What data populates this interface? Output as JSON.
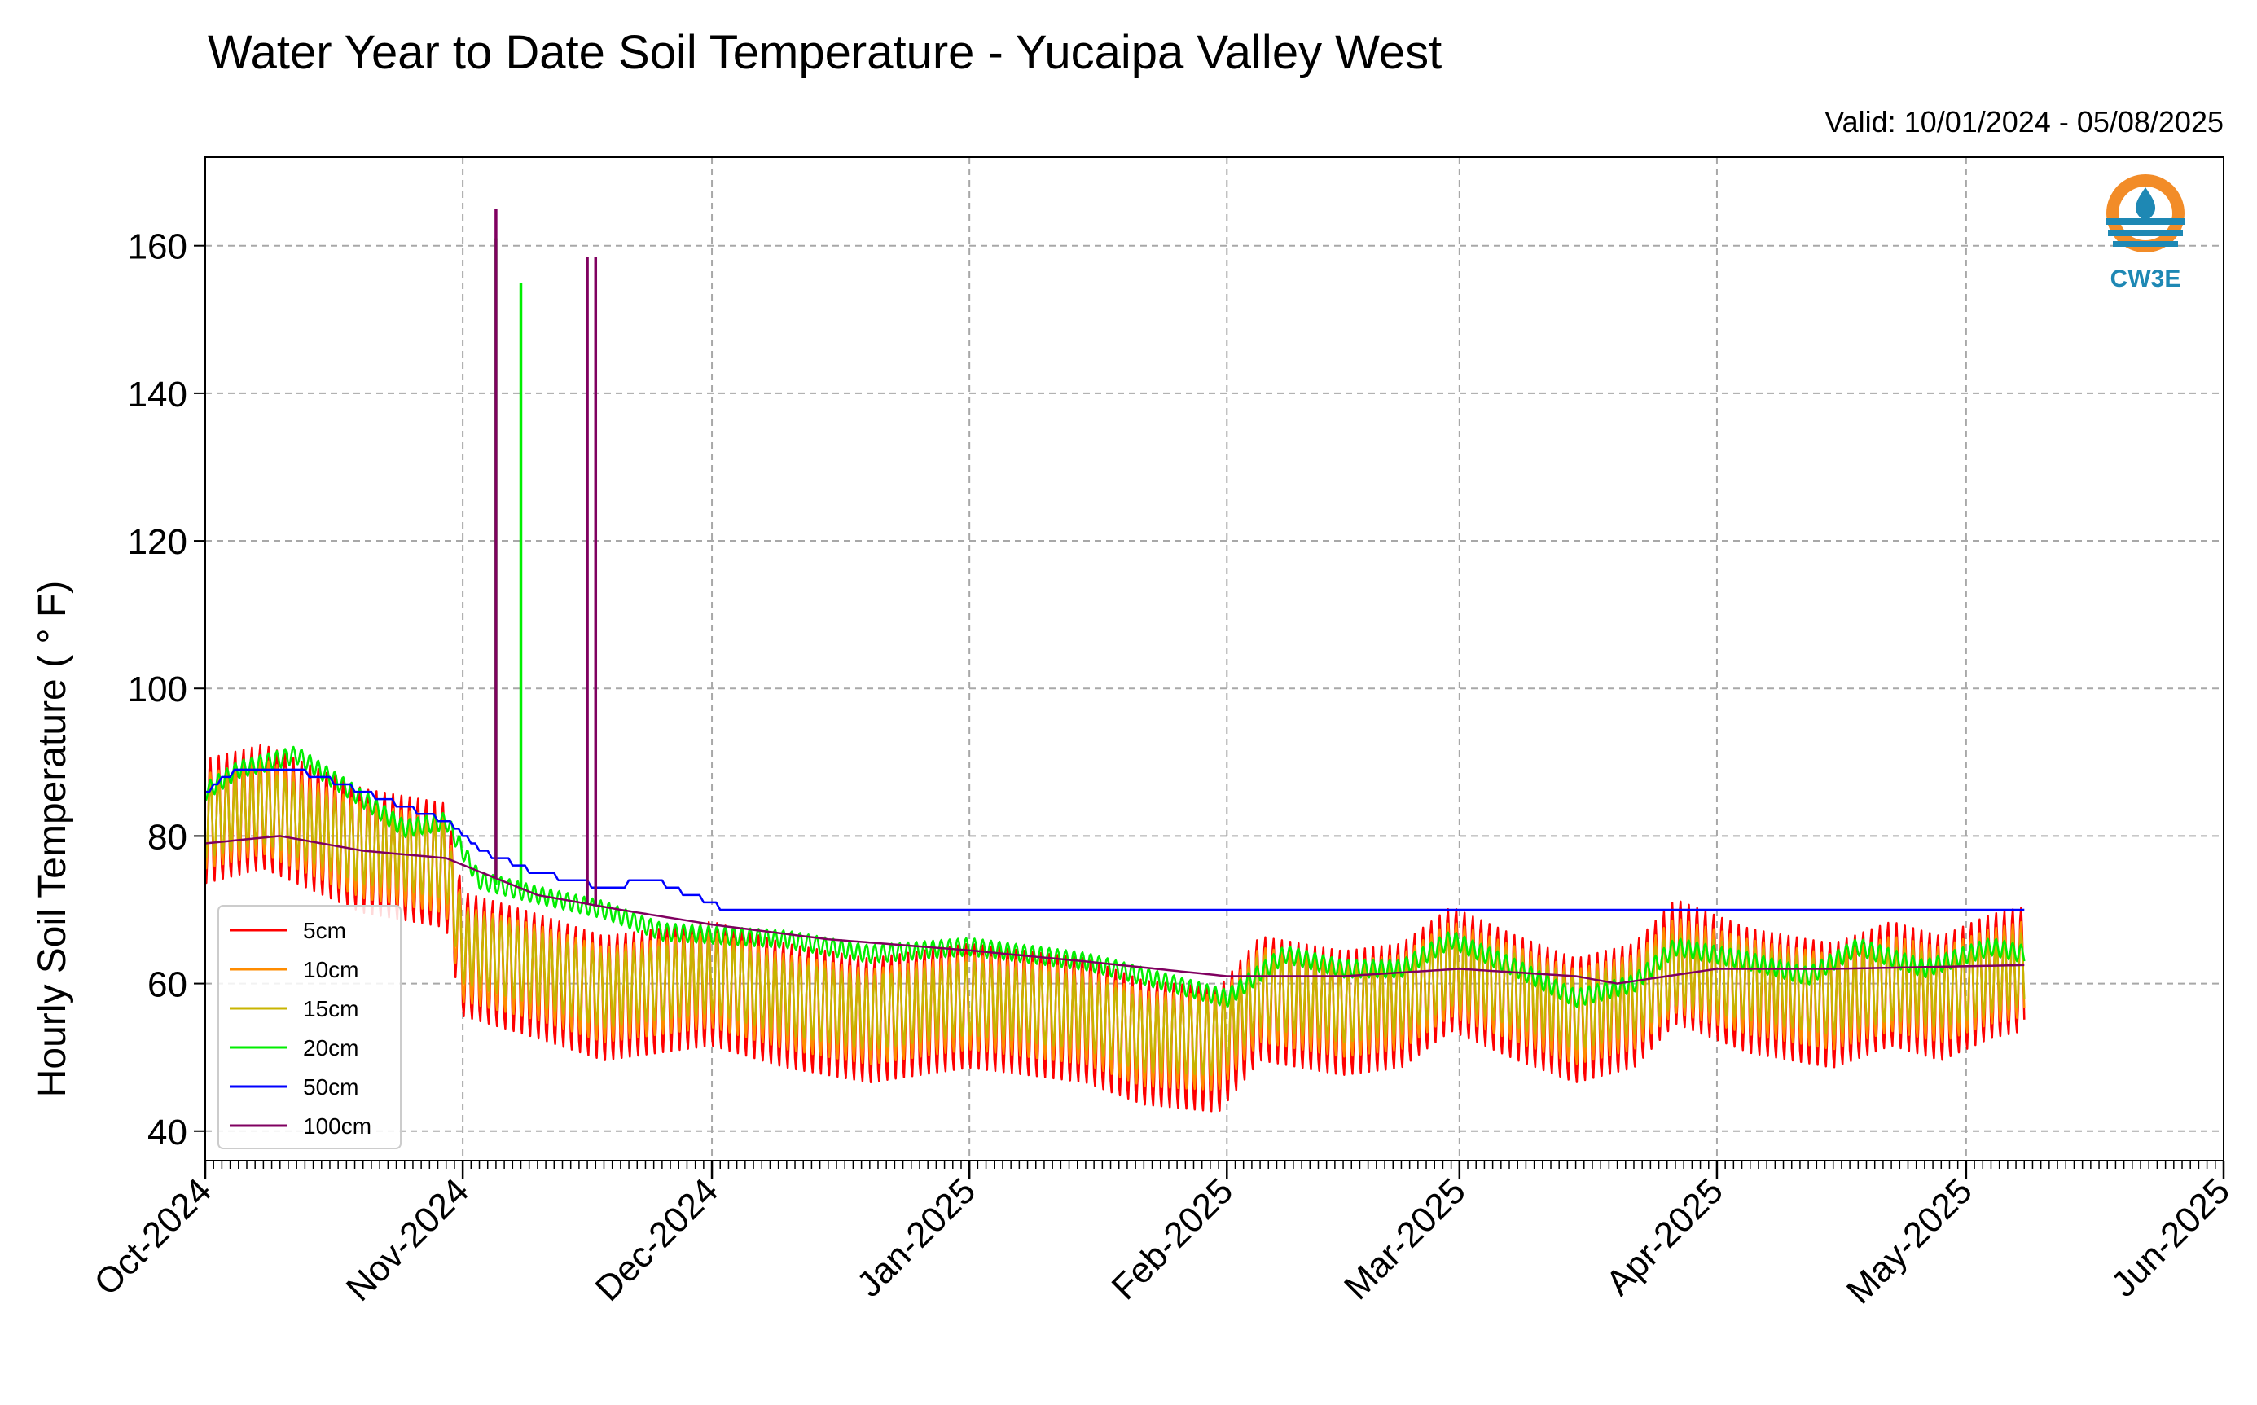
{
  "chart_data": {
    "type": "line",
    "title": "Water Year to Date Soil Temperature - Yucaipa Valley West",
    "subtitle": "Valid: 10/01/2024 - 05/08/2025",
    "ylabel": "Hourly Soil Temperature ( ° F)",
    "xlabel": "",
    "xlim": [
      "2024-10-01",
      "2025-06-01"
    ],
    "ylim": [
      36,
      172
    ],
    "yticks": [
      40,
      60,
      80,
      100,
      120,
      140,
      160
    ],
    "ytick_labels": [
      "40",
      "60",
      "80",
      "100",
      "120",
      "140",
      "160"
    ],
    "xticks": [
      "2024-10-01",
      "2024-11-01",
      "2024-12-01",
      "2025-01-01",
      "2025-02-01",
      "2025-03-01",
      "2025-04-01",
      "2025-05-01",
      "2025-06-01"
    ],
    "xtick_labels": [
      "Oct-2024",
      "Nov-2024",
      "Dec-2024",
      "Jan-2025",
      "Feb-2025",
      "Mar-2025",
      "Apr-2025",
      "May-2025",
      "Jun-2025"
    ],
    "grid": true,
    "legend_position": "bottom-left",
    "logo_text": "CW3E",
    "series": [
      {
        "name": "5cm",
        "color": "#ff0000",
        "amplitude": 8.5,
        "mean": [
          [
            "2024-10-01",
            82
          ],
          [
            "2024-10-08",
            84
          ],
          [
            "2024-10-20",
            78
          ],
          [
            "2024-10-30",
            76
          ],
          [
            "2024-11-01",
            64
          ],
          [
            "2024-11-10",
            61
          ],
          [
            "2024-11-18",
            58
          ],
          [
            "2024-12-01",
            60
          ],
          [
            "2024-12-10",
            57
          ],
          [
            "2024-12-20",
            55
          ],
          [
            "2025-01-01",
            57
          ],
          [
            "2025-01-15",
            55
          ],
          [
            "2025-01-22",
            52
          ],
          [
            "2025-01-31",
            51
          ],
          [
            "2025-02-05",
            58
          ],
          [
            "2025-02-15",
            56
          ],
          [
            "2025-02-22",
            57
          ],
          [
            "2025-02-28",
            62
          ],
          [
            "2025-03-08",
            58
          ],
          [
            "2025-03-15",
            55
          ],
          [
            "2025-03-22",
            57
          ],
          [
            "2025-03-27",
            63
          ],
          [
            "2025-04-05",
            59
          ],
          [
            "2025-04-15",
            57
          ],
          [
            "2025-04-22",
            60
          ],
          [
            "2025-04-28",
            58
          ],
          [
            "2025-05-04",
            61
          ],
          [
            "2025-05-08",
            62
          ]
        ],
        "spikes": []
      },
      {
        "name": "10cm",
        "color": "#ff8c00",
        "amplitude": 6.5,
        "mean": [
          [
            "2024-10-01",
            82
          ],
          [
            "2024-10-08",
            84
          ],
          [
            "2024-10-20",
            78
          ],
          [
            "2024-10-30",
            76
          ],
          [
            "2024-11-01",
            64
          ],
          [
            "2024-11-10",
            61.5
          ],
          [
            "2024-11-18",
            58.5
          ],
          [
            "2024-12-01",
            60.5
          ],
          [
            "2024-12-10",
            57.5
          ],
          [
            "2024-12-20",
            55.5
          ],
          [
            "2025-01-01",
            57.5
          ],
          [
            "2025-01-15",
            55.5
          ],
          [
            "2025-01-22",
            52.5
          ],
          [
            "2025-01-31",
            52
          ],
          [
            "2025-02-05",
            58.5
          ],
          [
            "2025-02-15",
            56.5
          ],
          [
            "2025-02-22",
            57.5
          ],
          [
            "2025-02-28",
            62
          ],
          [
            "2025-03-08",
            58.5
          ],
          [
            "2025-03-15",
            55.5
          ],
          [
            "2025-03-22",
            57.5
          ],
          [
            "2025-03-27",
            62.5
          ],
          [
            "2025-04-05",
            59.5
          ],
          [
            "2025-04-15",
            57.5
          ],
          [
            "2025-04-22",
            60
          ],
          [
            "2025-04-28",
            58.5
          ],
          [
            "2025-05-04",
            61
          ],
          [
            "2025-05-08",
            62
          ]
        ],
        "spikes": []
      },
      {
        "name": "15cm",
        "color": "#c8b400",
        "amplitude": 5,
        "mean": [
          [
            "2024-10-01",
            82
          ],
          [
            "2024-10-08",
            84
          ],
          [
            "2024-10-20",
            78.5
          ],
          [
            "2024-10-30",
            76.5
          ],
          [
            "2024-11-01",
            65
          ],
          [
            "2024-11-10",
            62
          ],
          [
            "2024-11-18",
            59
          ],
          [
            "2024-12-01",
            61
          ],
          [
            "2024-12-10",
            58
          ],
          [
            "2024-12-20",
            56
          ],
          [
            "2025-01-01",
            58
          ],
          [
            "2025-01-15",
            56
          ],
          [
            "2025-01-22",
            53
          ],
          [
            "2025-01-31",
            52.5
          ],
          [
            "2025-02-05",
            59
          ],
          [
            "2025-02-15",
            57
          ],
          [
            "2025-02-22",
            58
          ],
          [
            "2025-02-28",
            62
          ],
          [
            "2025-03-08",
            59
          ],
          [
            "2025-03-15",
            56
          ],
          [
            "2025-03-22",
            58
          ],
          [
            "2025-03-27",
            62
          ],
          [
            "2025-04-05",
            60
          ],
          [
            "2025-04-15",
            58
          ],
          [
            "2025-04-22",
            60
          ],
          [
            "2025-04-28",
            59
          ],
          [
            "2025-05-04",
            61
          ],
          [
            "2025-05-08",
            62
          ]
        ],
        "spikes": []
      },
      {
        "name": "20cm",
        "color": "#00ee00",
        "amplitude": 1.2,
        "mean": [
          [
            "2024-10-01",
            86
          ],
          [
            "2024-10-05",
            89
          ],
          [
            "2024-10-12",
            91
          ],
          [
            "2024-10-20",
            85
          ],
          [
            "2024-10-25",
            81
          ],
          [
            "2024-10-30",
            82
          ],
          [
            "2024-11-03",
            74
          ],
          [
            "2024-11-10",
            72
          ],
          [
            "2024-11-18",
            70
          ],
          [
            "2024-11-25",
            67
          ],
          [
            "2024-12-10",
            66
          ],
          [
            "2024-12-20",
            64
          ],
          [
            "2025-01-01",
            65
          ],
          [
            "2025-01-15",
            63
          ],
          [
            "2025-01-22",
            61
          ],
          [
            "2025-02-01",
            58
          ],
          [
            "2025-02-08",
            64
          ],
          [
            "2025-02-15",
            62
          ],
          [
            "2025-02-22",
            62
          ],
          [
            "2025-02-28",
            66
          ],
          [
            "2025-03-08",
            62
          ],
          [
            "2025-03-15",
            58
          ],
          [
            "2025-03-22",
            60
          ],
          [
            "2025-03-27",
            65
          ],
          [
            "2025-04-05",
            63
          ],
          [
            "2025-04-12",
            61
          ],
          [
            "2025-04-18",
            65
          ],
          [
            "2025-04-26",
            62
          ],
          [
            "2025-05-04",
            65
          ],
          [
            "2025-05-08",
            64
          ]
        ],
        "spikes": [
          [
            "2024-11-05",
            161
          ],
          [
            "2024-11-08",
            155
          ]
        ]
      },
      {
        "name": "50cm",
        "color": "#0000ff",
        "amplitude": 0,
        "mean": [
          [
            "2024-10-01",
            86
          ],
          [
            "2024-10-05",
            89
          ],
          [
            "2024-10-12",
            89
          ],
          [
            "2024-10-20",
            86
          ],
          [
            "2024-10-30",
            82
          ],
          [
            "2024-11-03",
            78
          ],
          [
            "2024-11-10",
            75
          ],
          [
            "2024-11-18",
            73
          ],
          [
            "2024-11-24",
            74
          ],
          [
            "2024-12-03",
            70
          ],
          [
            "2025-05-08",
            70
          ]
        ],
        "spikes": []
      },
      {
        "name": "100cm",
        "color": "#800060",
        "amplitude": 0,
        "mean": [
          [
            "2024-10-01",
            79
          ],
          [
            "2024-10-10",
            80
          ],
          [
            "2024-10-20",
            78
          ],
          [
            "2024-10-30",
            77
          ],
          [
            "2024-11-10",
            72
          ],
          [
            "2024-11-20",
            70
          ],
          [
            "2024-12-01",
            68
          ],
          [
            "2024-12-15",
            66
          ],
          [
            "2025-01-01",
            64.5
          ],
          [
            "2025-01-15",
            63
          ],
          [
            "2025-02-01",
            61
          ],
          [
            "2025-02-15",
            61
          ],
          [
            "2025-03-01",
            62
          ],
          [
            "2025-03-15",
            61
          ],
          [
            "2025-03-20",
            60
          ],
          [
            "2025-04-01",
            62
          ],
          [
            "2025-04-15",
            62
          ],
          [
            "2025-05-08",
            62.5
          ]
        ],
        "spikes": [
          [
            "2024-11-05",
            165
          ],
          [
            "2024-11-16",
            158.5
          ],
          [
            "2024-11-17",
            158.5
          ]
        ]
      }
    ]
  }
}
